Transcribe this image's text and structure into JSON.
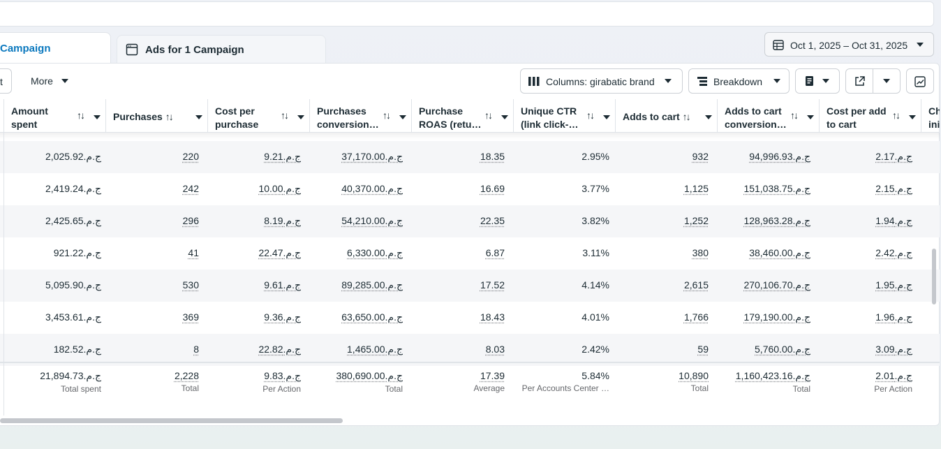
{
  "tabs": {
    "active_label": "Campaign",
    "inactive_label": "Ads for 1 Campaign"
  },
  "date_range": "Oct 1, 2025 – Oct 31, 2025",
  "toolbar": {
    "cut_label": "t",
    "more_label": "More",
    "columns_label": "Columns: girabatic brand",
    "breakdown_label": "Breakdown"
  },
  "columns": [
    {
      "line1": "Amount",
      "line2": "spent"
    },
    {
      "line1": "Purchases",
      "line2": ""
    },
    {
      "line1": "Cost per",
      "line2": "purchase"
    },
    {
      "line1": "Purchases",
      "line2": "conversion…"
    },
    {
      "line1": "Purchase",
      "line2": "ROAS (retu…"
    },
    {
      "line1": "Unique CTR",
      "line2": "(link click-…"
    },
    {
      "line1": "Adds to cart",
      "line2": ""
    },
    {
      "line1": "Adds to cart",
      "line2": "conversion…"
    },
    {
      "line1": "Cost per add",
      "line2": "to cart"
    },
    {
      "line1": "Ch",
      "line2": "ini"
    }
  ],
  "sort_glyph": "↑↓",
  "rows": [
    [
      "2,025.92ج.م.‏",
      "220",
      "9.21ج.م.‏",
      "37,170.00ج.م.‏",
      "18.35",
      "2.95%",
      "932",
      "94,996.93ج.م.‏",
      "2.17ج.م.‏"
    ],
    [
      "2,419.24ج.م.‏",
      "242",
      "10.00ج.م.‏",
      "40,370.00ج.م.‏",
      "16.69",
      "3.77%",
      "1,125",
      "151,038.75ج.م.‏",
      "2.15ج.م.‏"
    ],
    [
      "2,425.65ج.م.‏",
      "296",
      "8.19ج.م.‏",
      "54,210.00ج.م.‏",
      "22.35",
      "3.82%",
      "1,252",
      "128,963.28ج.م.‏",
      "1.94ج.م.‏"
    ],
    [
      "921.22ج.م.‏",
      "41",
      "22.47ج.م.‏",
      "6,330.00ج.م.‏",
      "6.87",
      "3.11%",
      "380",
      "38,460.00ج.م.‏",
      "2.42ج.م.‏"
    ],
    [
      "5,095.90ج.م.‏",
      "530",
      "9.61ج.م.‏",
      "89,285.00ج.م.‏",
      "17.52",
      "4.14%",
      "2,615",
      "270,106.70ج.م.‏",
      "1.95ج.م.‏"
    ],
    [
      "3,453.61ج.م.‏",
      "369",
      "9.36ج.م.‏",
      "63,650.00ج.م.‏",
      "18.43",
      "4.01%",
      "1,766",
      "179,190.00ج.م.‏",
      "1.96ج.م.‏"
    ],
    [
      "182.52ج.م.‏",
      "8",
      "22.82ج.م.‏",
      "1,465.00ج.م.‏",
      "8.03",
      "2.42%",
      "59",
      "5,760.00ج.م.‏",
      "3.09ج.م.‏"
    ]
  ],
  "totals": [
    {
      "value": "21,894.73ج.م.‏",
      "sub": "Total spent"
    },
    {
      "value": "2,228",
      "sub": "Total"
    },
    {
      "value": "9.83ج.م.‏",
      "sub": "Per Action"
    },
    {
      "value": "380,690.00ج.م.‏",
      "sub": "Total"
    },
    {
      "value": "17.39",
      "sub": "Average"
    },
    {
      "value": "5.84%",
      "sub": "Per Accounts Center …"
    },
    {
      "value": "10,890",
      "sub": "Total"
    },
    {
      "value": "1,160,423.16ج.م.‏",
      "sub": "Total"
    },
    {
      "value": "2.01ج.م.‏",
      "sub": "Per Action"
    }
  ],
  "icons": {
    "tab_icon": "ad-frame-icon",
    "date_icon": "calendar-icon",
    "columns_icon": "columns-icon",
    "breakdown_icon": "breakdown-icon",
    "reports_icon": "reports-icon",
    "export_icon": "export-icon",
    "chart_icon": "chart-trend-icon"
  }
}
